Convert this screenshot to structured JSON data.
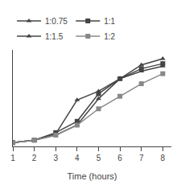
{
  "chart_data": {
    "type": "line",
    "xlabel": "Time (hours)",
    "x": [
      1,
      2,
      3,
      4,
      5,
      6,
      7,
      8
    ],
    "series": [
      {
        "name": "1:0.75",
        "color": "#444444",
        "marker": "triangle",
        "values": [
          0.01,
          0.03,
          0.08,
          0.35,
          0.42,
          0.52,
          0.58,
          0.62
        ]
      },
      {
        "name": "1:1",
        "color": "#444444",
        "marker": "square",
        "values": [
          0.01,
          0.03,
          0.09,
          0.18,
          0.4,
          0.52,
          0.6,
          0.64
        ]
      },
      {
        "name": "1:1.5",
        "color": "#444444",
        "marker": "triangle",
        "values": [
          0.01,
          0.03,
          0.07,
          0.15,
          0.36,
          0.52,
          0.63,
          0.68
        ]
      },
      {
        "name": "1:2",
        "color": "#888888",
        "marker": "square",
        "values": [
          0.01,
          0.03,
          0.07,
          0.15,
          0.28,
          0.38,
          0.48,
          0.56
        ]
      }
    ],
    "xlim": [
      1,
      8.4
    ],
    "xticks": [
      1,
      2,
      3,
      4,
      5,
      6,
      7,
      8
    ],
    "ylim": [
      -0.02,
      0.75
    ],
    "tick_labels": "x",
    "grid": false,
    "legend": "upper left"
  }
}
